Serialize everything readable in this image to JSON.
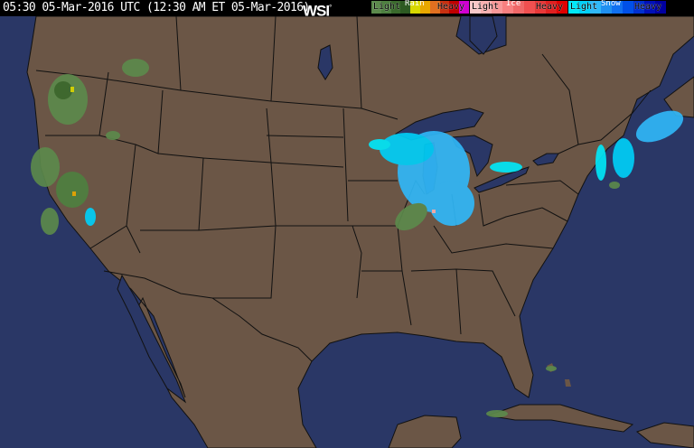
{
  "header": {
    "timestamp": "05:30 05-Mar-2016 UTC  (12:30 AM ET 05-Mar-2016)",
    "logo": "WSI",
    "logo_mark": "°"
  },
  "legend": {
    "rain": {
      "title": "Rain",
      "light": "Light",
      "heavy": "Heavy",
      "colors": [
        "#5c8a4c",
        "#4e8040",
        "#3a6a2c",
        "#2d5a22",
        "#d8d800",
        "#e8a800",
        "#e07020",
        "#c83010",
        "#c00000",
        "#d000d0"
      ]
    },
    "ice": {
      "title": "Ice",
      "light": "Light",
      "heavy": "Heavy",
      "colors": [
        "#f8c8c8",
        "#f8b0b0",
        "#f89898",
        "#f88080",
        "#f06868",
        "#f05050",
        "#e83838",
        "#e02020",
        "#e00000"
      ]
    },
    "snow": {
      "title": "Snow",
      "light": "Light",
      "heavy": "Heavy",
      "colors": [
        "#00e8f8",
        "#00d0f8",
        "#30b8f8",
        "#2090f0",
        "#1070f0",
        "#0050e8",
        "#0030d0",
        "#0010b8",
        "#0000a0"
      ]
    }
  },
  "map": {
    "land_color": "#6b5646",
    "water_color": "#2a3766",
    "border_color": "#111111"
  }
}
